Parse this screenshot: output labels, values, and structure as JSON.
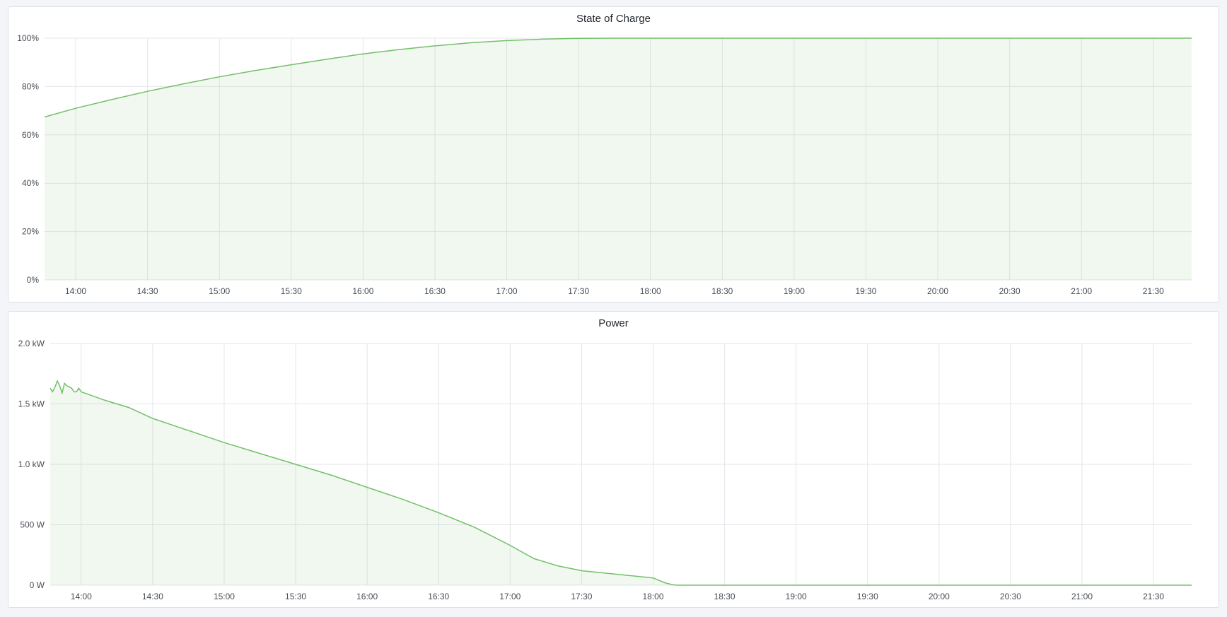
{
  "colors": {
    "line": "#73bf69",
    "fill": "#73bf69",
    "grid": "#e4e6ea",
    "background": "#f4f5f8"
  },
  "chart_data": [
    {
      "type": "area",
      "title": "State of Charge",
      "x_ticks": [
        "14:00",
        "14:30",
        "15:00",
        "15:30",
        "16:00",
        "16:30",
        "17:00",
        "17:30",
        "18:00",
        "18:30",
        "19:00",
        "19:30",
        "20:00",
        "20:30",
        "21:00",
        "21:30"
      ],
      "xlim": [
        "13:47",
        "21:46"
      ],
      "y_ticks": [
        "0%",
        "20%",
        "40%",
        "60%",
        "80%",
        "100%"
      ],
      "ylim": [
        0,
        100
      ],
      "grid": true,
      "x": [
        "13:47",
        "14:00",
        "14:15",
        "14:30",
        "14:45",
        "15:00",
        "15:15",
        "15:30",
        "15:45",
        "16:00",
        "16:15",
        "16:30",
        "16:45",
        "17:00",
        "17:15",
        "17:30",
        "17:45",
        "18:00",
        "18:30",
        "19:00",
        "20:00",
        "21:00",
        "21:46"
      ],
      "values": [
        67.4,
        71,
        74.6,
        78,
        81.1,
        84,
        86.6,
        89,
        91.3,
        93.5,
        95.3,
        96.8,
        98.1,
        99,
        99.6,
        99.9,
        100,
        100,
        100,
        100,
        100,
        100,
        100
      ]
    },
    {
      "type": "area",
      "title": "Power",
      "x_ticks": [
        "14:00",
        "14:30",
        "15:00",
        "15:30",
        "16:00",
        "16:30",
        "17:00",
        "17:30",
        "18:00",
        "18:30",
        "19:00",
        "19:30",
        "20:00",
        "20:30",
        "21:00",
        "21:30"
      ],
      "xlim": [
        "13:47",
        "21:46"
      ],
      "y_ticks": [
        "0 W",
        "500 W",
        "1.0 kW",
        "1.5 kW",
        "2.0 kW"
      ],
      "ylim": [
        0,
        2000
      ],
      "grid": true,
      "x": [
        "13:47",
        "13:48",
        "13:49",
        "13:50",
        "13:51",
        "13:52",
        "13:53",
        "13:54",
        "13:55",
        "13:56",
        "13:57",
        "13:58",
        "13:59",
        "14:00",
        "14:10",
        "14:20",
        "14:30",
        "14:45",
        "15:00",
        "15:15",
        "15:30",
        "15:45",
        "16:00",
        "16:15",
        "16:30",
        "16:45",
        "17:00",
        "17:10",
        "17:20",
        "17:30",
        "17:45",
        "18:00",
        "18:05",
        "18:08",
        "18:10",
        "19:00",
        "20:00",
        "21:00",
        "21:46"
      ],
      "values": [
        1630,
        1600,
        1640,
        1690,
        1650,
        1590,
        1670,
        1650,
        1640,
        1630,
        1600,
        1600,
        1630,
        1600,
        1530,
        1470,
        1380,
        1280,
        1180,
        1090,
        1000,
        910,
        810,
        710,
        600,
        480,
        330,
        220,
        160,
        120,
        90,
        60,
        20,
        5,
        0,
        0,
        0,
        0,
        0
      ]
    }
  ]
}
